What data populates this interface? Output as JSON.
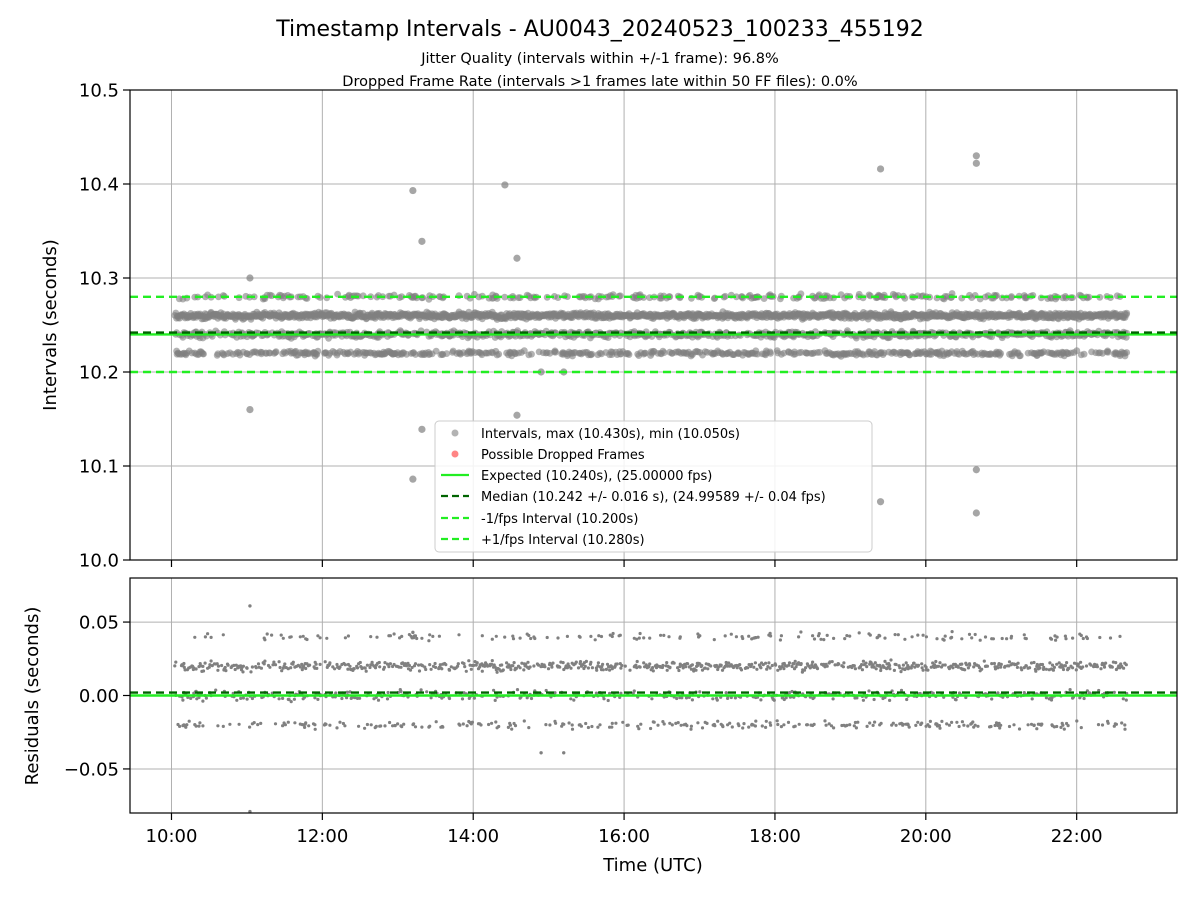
{
  "figure": {
    "title": "Timestamp Intervals - AU0043_20240523_100233_455192",
    "subtitle_1": "Jitter Quality (intervals within +/-1 frame): 96.8%",
    "subtitle_2": "Dropped Frame Rate (intervals >1 frames late within 50 FF files): 0.0%"
  },
  "colors": {
    "points": "#808080",
    "dropped": "#ff4444",
    "expected": "#22ee22",
    "median": "#006400",
    "bounds": "#22ee22",
    "grid": "#b0b0b0"
  },
  "chart_data": [
    {
      "type": "scatter",
      "ylabel": "Intervals (seconds)",
      "xlabel": "",
      "xlim_hours": [
        9.45,
        23.33
      ],
      "ylim": [
        10.0,
        10.5
      ],
      "y_ticks": [
        10.0,
        10.1,
        10.2,
        10.3,
        10.4,
        10.5
      ],
      "y_tick_labels": [
        "10.0",
        "10.1",
        "10.2",
        "10.3",
        "10.4",
        "10.5"
      ],
      "x_ticks_hours": [
        10,
        12,
        14,
        16,
        18,
        20,
        22
      ],
      "grid": true,
      "legend_position": "lower-center",
      "reference_lines": {
        "expected": 10.24,
        "median": 10.242,
        "minus_1_fps": 10.2,
        "plus_1_fps": 10.28
      },
      "legend": [
        {
          "label": "Intervals, max (10.430s), min (10.050s)",
          "style": "marker",
          "color": "#999999"
        },
        {
          "label": "Possible Dropped Frames",
          "style": "marker",
          "color": "#ff6666"
        },
        {
          "label": "Expected (10.240s), (25.00000 fps)",
          "style": "solid",
          "color": "#22ee22"
        },
        {
          "label": "Median (10.242 +/- 0.016 s), (24.99589 +/- 0.04 fps)",
          "style": "dashed",
          "color": "#006400"
        },
        {
          "label": "-1/fps Interval (10.200s)",
          "style": "dashed",
          "color": "#22ee22"
        },
        {
          "label": "+1/fps Interval (10.280s)",
          "style": "dashed",
          "color": "#22ee22"
        }
      ],
      "time_range_hours": [
        10.04,
        22.67
      ],
      "bands": [
        {
          "center": 10.26,
          "spread": 0.004,
          "density": 1.0
        },
        {
          "center": 10.24,
          "spread": 0.004,
          "density": 0.55
        },
        {
          "center": 10.22,
          "spread": 0.003,
          "density": 0.4
        },
        {
          "center": 10.28,
          "spread": 0.003,
          "density": 0.22
        }
      ],
      "outliers": [
        {
          "x": 11.04,
          "y": 10.3
        },
        {
          "x": 11.04,
          "y": 10.16
        },
        {
          "x": 13.2,
          "y": 10.393
        },
        {
          "x": 13.2,
          "y": 10.086
        },
        {
          "x": 13.32,
          "y": 10.339
        },
        {
          "x": 13.32,
          "y": 10.139
        },
        {
          "x": 14.42,
          "y": 10.399
        },
        {
          "x": 14.58,
          "y": 10.321
        },
        {
          "x": 14.58,
          "y": 10.154
        },
        {
          "x": 14.9,
          "y": 10.2
        },
        {
          "x": 15.2,
          "y": 10.2
        },
        {
          "x": 19.4,
          "y": 10.416
        },
        {
          "x": 19.4,
          "y": 10.062
        },
        {
          "x": 20.67,
          "y": 10.43
        },
        {
          "x": 20.67,
          "y": 10.422
        },
        {
          "x": 20.67,
          "y": 10.096
        },
        {
          "x": 20.67,
          "y": 10.05
        }
      ]
    },
    {
      "type": "scatter",
      "ylabel": "Residuals (seconds)",
      "xlabel": "Time (UTC)",
      "xlim_hours": [
        9.45,
        23.33
      ],
      "ylim": [
        -0.08,
        0.08
      ],
      "y_ticks": [
        0.05,
        0.0,
        -0.05
      ],
      "y_tick_labels": [
        "0.05",
        "0.00",
        "−0.05"
      ],
      "x_ticks_hours": [
        10,
        12,
        14,
        16,
        18,
        20,
        22
      ],
      "x_tick_labels": [
        "10:00",
        "12:00",
        "14:00",
        "16:00",
        "18:00",
        "20:00",
        "22:00"
      ],
      "grid": true,
      "reference_lines": {
        "expected": 0.0,
        "median": 0.002
      },
      "outliers": [
        {
          "x": 11.04,
          "y": 0.061
        },
        {
          "x": 11.04,
          "y": -0.079
        },
        {
          "x": 13.2,
          "y": 0.043
        },
        {
          "x": 14.9,
          "y": -0.039
        },
        {
          "x": 15.2,
          "y": -0.039
        }
      ]
    }
  ]
}
